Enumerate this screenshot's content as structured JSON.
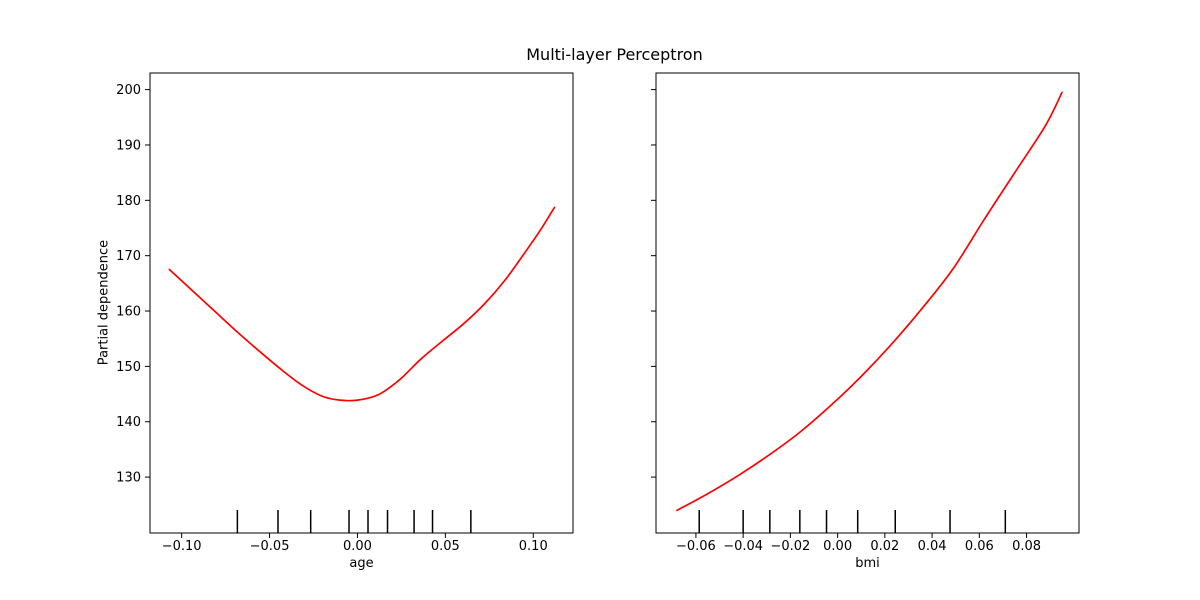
{
  "title": "Multi-layer Perceptron",
  "ylabel": "Partial dependence",
  "colors": {
    "curve": "#ff0000",
    "axis": "#000000",
    "text": "#000000",
    "background": "#ffffff"
  },
  "chart_data": [
    {
      "type": "line",
      "title": "Multi-layer Perceptron",
      "xlabel": "age",
      "ylabel": "Partial dependence",
      "grid": false,
      "legend": false,
      "xlim": [
        -0.118,
        0.1226
      ],
      "ylim": [
        119.9,
        203.0
      ],
      "xticks": {
        "values": [
          -0.1,
          -0.05,
          0.0,
          0.05,
          0.1
        ],
        "labels": [
          "−0.10",
          "−0.05",
          "0.00",
          "0.05",
          "0.10"
        ]
      },
      "yticks": {
        "values": [
          130,
          140,
          150,
          160,
          170,
          180,
          190,
          200
        ],
        "labels": [
          "130",
          "140",
          "150",
          "160",
          "170",
          "180",
          "190",
          "200"
        ],
        "show_labels": true
      },
      "series": [
        {
          "name": "partial-dependence-age",
          "color": "#ff0000",
          "x": [
            -0.107,
            -0.095,
            -0.082,
            -0.069,
            -0.056,
            -0.044,
            -0.032,
            -0.02,
            -0.01,
            0.0,
            0.012,
            0.024,
            0.036,
            0.048,
            0.06,
            0.072,
            0.084,
            0.096,
            0.104,
            0.112
          ],
          "y": [
            167.5,
            164.0,
            160.2,
            156.4,
            152.8,
            149.6,
            146.7,
            144.6,
            143.9,
            143.9,
            144.9,
            147.6,
            151.3,
            154.5,
            157.6,
            161.2,
            165.6,
            170.9,
            174.6,
            178.7
          ]
        }
      ],
      "rug_x": [
        -0.0683,
        -0.0452,
        -0.0266,
        -0.0048,
        0.006,
        0.0171,
        0.0322,
        0.0427,
        0.0645
      ]
    },
    {
      "type": "line",
      "title": "",
      "xlabel": "bmi",
      "ylabel": "",
      "grid": false,
      "legend": false,
      "xlim": [
        -0.0769,
        0.1022
      ],
      "ylim": [
        119.9,
        203.0
      ],
      "xticks": {
        "values": [
          -0.06,
          -0.04,
          -0.02,
          0.0,
          0.02,
          0.04,
          0.06,
          0.08
        ],
        "labels": [
          "−0.06",
          "−0.04",
          "−0.02",
          "0.00",
          "0.02",
          "0.04",
          "0.06",
          "0.08"
        ]
      },
      "yticks": {
        "values": [
          130,
          140,
          150,
          160,
          170,
          180,
          190,
          200
        ],
        "labels": [],
        "show_labels": false
      },
      "series": [
        {
          "name": "partial-dependence-bmi",
          "color": "#ff0000",
          "x": [
            -0.068,
            -0.055,
            -0.042,
            -0.029,
            -0.016,
            -0.003,
            0.01,
            0.023,
            0.036,
            0.049,
            0.062,
            0.075,
            0.088,
            0.095
          ],
          "y": [
            124.0,
            127.0,
            130.3,
            134.0,
            138.1,
            142.9,
            148.2,
            154.1,
            160.6,
            167.7,
            176.5,
            185.0,
            193.5,
            199.5
          ]
        }
      ],
      "rug_x": [
        -0.0586,
        -0.04,
        -0.0287,
        -0.016,
        -0.0047,
        0.0085,
        0.0244,
        0.0476,
        0.071
      ]
    }
  ]
}
